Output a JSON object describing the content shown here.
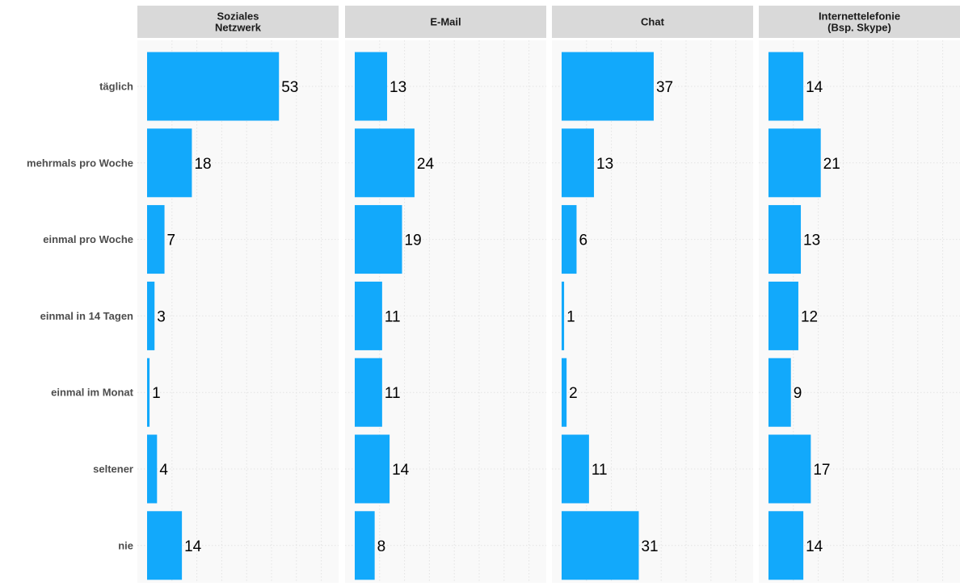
{
  "chart_data": {
    "type": "bar",
    "orientation": "horizontal",
    "facets": [
      {
        "title": "Soziales\nNetzwerk",
        "values": [
          53,
          18,
          7,
          3,
          1,
          4,
          14
        ]
      },
      {
        "title": "E-Mail",
        "values": [
          13,
          24,
          19,
          11,
          11,
          14,
          8
        ]
      },
      {
        "title": "Chat",
        "values": [
          37,
          13,
          6,
          1,
          2,
          11,
          31
        ]
      },
      {
        "title": "Internettelefonie\n(Bsp. Skype)",
        "values": [
          14,
          21,
          13,
          12,
          9,
          17,
          14
        ]
      }
    ],
    "categories": [
      "täglich",
      "mehrmals pro Woche",
      "einmal pro Woche",
      "einmal in 14 Tagen",
      "einmal im Monat",
      "seltener",
      "nie"
    ],
    "xlim": [
      0,
      72
    ],
    "grid": true,
    "bar_color": "#12a9fb",
    "panel_background": "#f9f9f9",
    "strip_background": "#d9d9d9",
    "grid_color": "#e3e3e3"
  }
}
